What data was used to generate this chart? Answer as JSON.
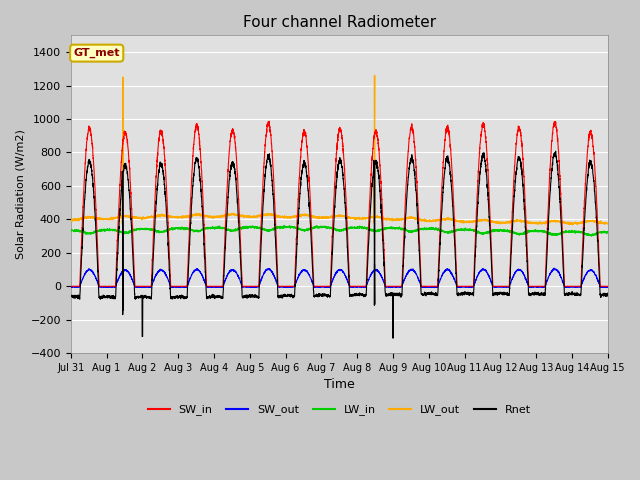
{
  "title": "Four channel Radiometer",
  "xlabel": "Time",
  "ylabel": "Solar Radiation (W/m2)",
  "ylim": [
    -400,
    1500
  ],
  "yticks": [
    -400,
    -200,
    0,
    200,
    400,
    600,
    800,
    1000,
    1200,
    1400
  ],
  "xtick_labels": [
    "Jul 31",
    "Aug 1",
    "Aug 2",
    "Aug 3",
    "Aug 4",
    "Aug 5",
    "Aug 6",
    "Aug 7",
    "Aug 8",
    "Aug 9",
    "Aug 10",
    "Aug 11",
    "Aug 12",
    "Aug 13",
    "Aug 14",
    "Aug 15"
  ],
  "colors": {
    "SW_in": "#ff0000",
    "SW_out": "#0000ff",
    "LW_in": "#00cc00",
    "LW_out": "#ffaa00",
    "Rnet": "#000000"
  },
  "annotation_text": "GT_met",
  "fig_facecolor": "#c8c8c8",
  "ax_facecolor": "#e0e0e0",
  "grid_color": "#ffffff"
}
